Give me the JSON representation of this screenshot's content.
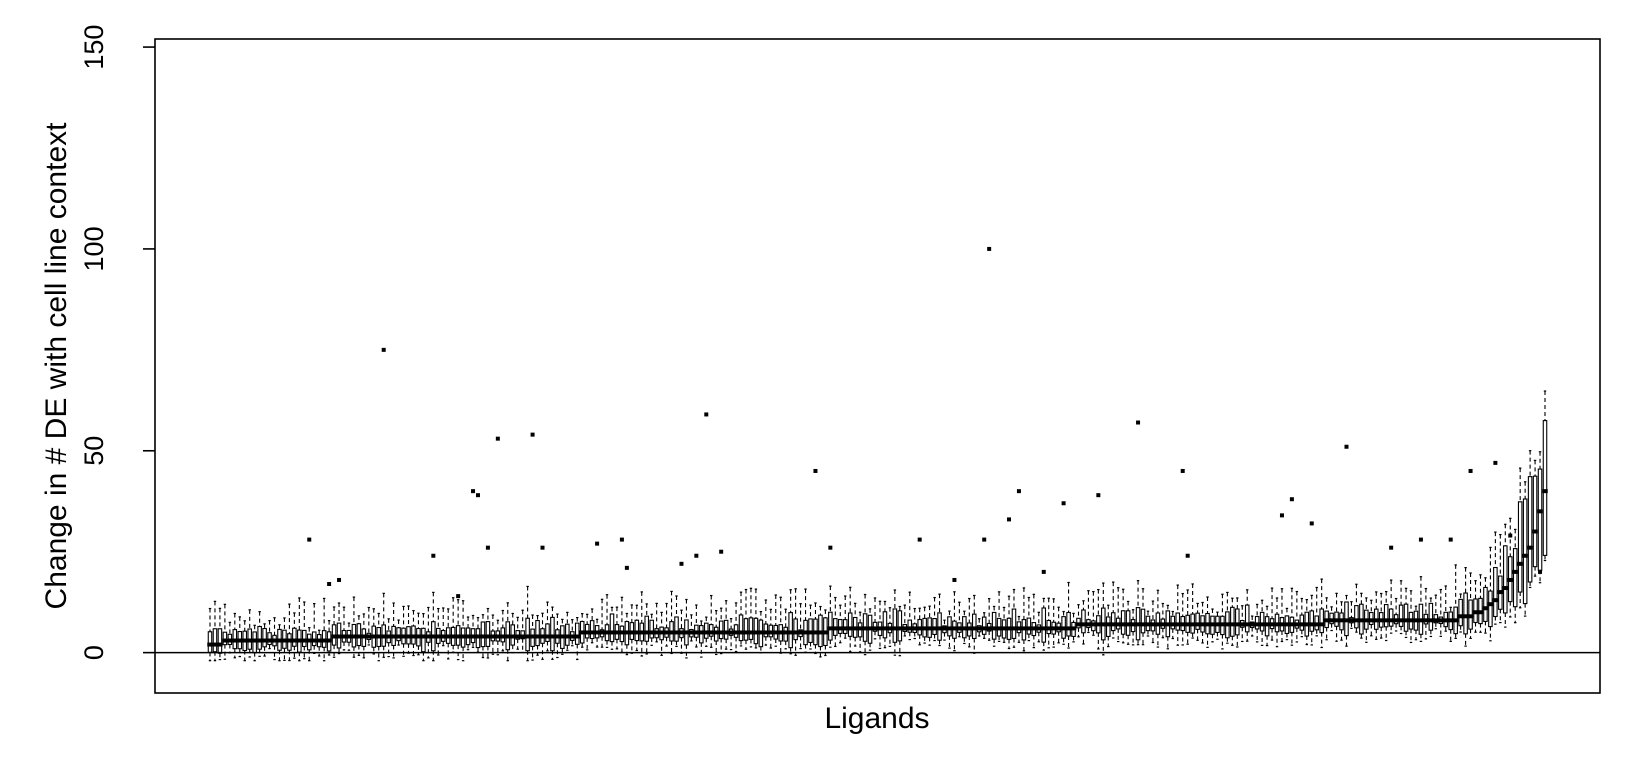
{
  "chart_data": {
    "type": "boxplot",
    "title": "",
    "xlabel": "Ligands",
    "ylabel": "Change in # DE with cell line context",
    "ylim": [
      -10,
      152
    ],
    "yticks": [
      "0",
      "50",
      "100",
      "150"
    ],
    "reference_line_y": 0,
    "grid": false,
    "legend": "none",
    "box_count": 270,
    "medians": {
      "start": 2,
      "bulk_low": 3,
      "bulk_high": 8,
      "tail": [
        8,
        8,
        9,
        9,
        9,
        10,
        10,
        11,
        12,
        13,
        15,
        16,
        18,
        20,
        22,
        24,
        26,
        30,
        35,
        40
      ]
    },
    "outliers": [
      {
        "box": 20,
        "y": 28
      },
      {
        "box": 24,
        "y": 17
      },
      {
        "box": 26,
        "y": 18
      },
      {
        "box": 35,
        "y": 75
      },
      {
        "box": 45,
        "y": 24
      },
      {
        "box": 50,
        "y": 14
      },
      {
        "box": 53,
        "y": 40
      },
      {
        "box": 54,
        "y": 39
      },
      {
        "box": 56,
        "y": 26
      },
      {
        "box": 58,
        "y": 53
      },
      {
        "box": 65,
        "y": 54
      },
      {
        "box": 67,
        "y": 26
      },
      {
        "box": 78,
        "y": 27
      },
      {
        "box": 83,
        "y": 28
      },
      {
        "box": 84,
        "y": 21
      },
      {
        "box": 95,
        "y": 22
      },
      {
        "box": 98,
        "y": 24
      },
      {
        "box": 100,
        "y": 59
      },
      {
        "box": 103,
        "y": 25
      },
      {
        "box": 122,
        "y": 45
      },
      {
        "box": 125,
        "y": 26
      },
      {
        "box": 143,
        "y": 28
      },
      {
        "box": 150,
        "y": 18
      },
      {
        "box": 156,
        "y": 28
      },
      {
        "box": 157,
        "y": 100
      },
      {
        "box": 161,
        "y": 33
      },
      {
        "box": 163,
        "y": 40
      },
      {
        "box": 168,
        "y": 20
      },
      {
        "box": 172,
        "y": 37
      },
      {
        "box": 179,
        "y": 39
      },
      {
        "box": 187,
        "y": 57
      },
      {
        "box": 196,
        "y": 45
      },
      {
        "box": 197,
        "y": 24
      },
      {
        "box": 216,
        "y": 34
      },
      {
        "box": 218,
        "y": 38
      },
      {
        "box": 222,
        "y": 32
      },
      {
        "box": 229,
        "y": 51
      },
      {
        "box": 238,
        "y": 26
      },
      {
        "box": 244,
        "y": 28
      },
      {
        "box": 250,
        "y": 28
      },
      {
        "box": 254,
        "y": 45
      },
      {
        "box": 259,
        "y": 47
      },
      {
        "box": 262,
        "y": 29
      },
      {
        "box": 268,
        "y": 20
      }
    ]
  }
}
